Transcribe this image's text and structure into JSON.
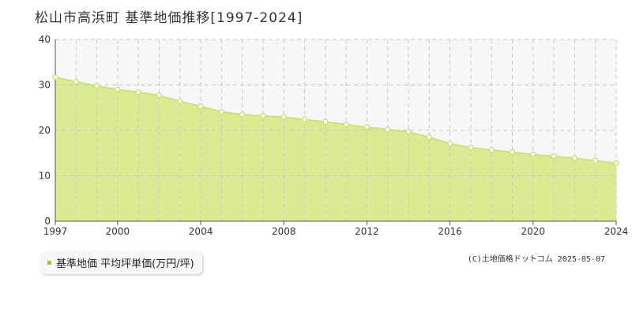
{
  "title": "松山市高浜町 基準地価推移[1997-2024]",
  "legend": {
    "label": "基準地価 平均坪単価(万円/坪)"
  },
  "copyright": "(C)土地価格ドットコム 2025-05-07",
  "colors": {
    "area_fill": "#dbeb94",
    "line": "#c5df6a",
    "marker_fill": "#ffffff",
    "legend_marker": "#a4c639",
    "band": "#f7f7f7",
    "grid": "#c8c8c8"
  },
  "chart_data": {
    "type": "area",
    "title": "松山市高浜町 基準地価推移[1997-2024]",
    "xlabel": "",
    "ylabel": "",
    "xlim": [
      1997,
      2024
    ],
    "ylim": [
      0,
      40
    ],
    "x_ticks": [
      1997,
      2000,
      2004,
      2008,
      2012,
      2016,
      2020,
      2024
    ],
    "y_ticks": [
      0,
      10,
      20,
      30,
      40
    ],
    "grid": true,
    "legend_position": "bottom-left",
    "series": [
      {
        "name": "基準地価 平均坪単価(万円/坪)",
        "x": [
          1997,
          1998,
          1999,
          2000,
          2001,
          2002,
          2003,
          2004,
          2005,
          2006,
          2007,
          2008,
          2009,
          2010,
          2011,
          2012,
          2013,
          2014,
          2015,
          2016,
          2017,
          2018,
          2019,
          2020,
          2021,
          2022,
          2023,
          2024
        ],
        "values": [
          31.7,
          30.7,
          29.8,
          29.0,
          28.4,
          27.7,
          26.4,
          25.3,
          24.1,
          23.5,
          23.2,
          22.9,
          22.4,
          21.9,
          21.3,
          20.7,
          20.2,
          19.7,
          18.5,
          17.1,
          16.2,
          15.7,
          15.2,
          14.7,
          14.3,
          13.9,
          13.3,
          12.8
        ]
      }
    ]
  }
}
